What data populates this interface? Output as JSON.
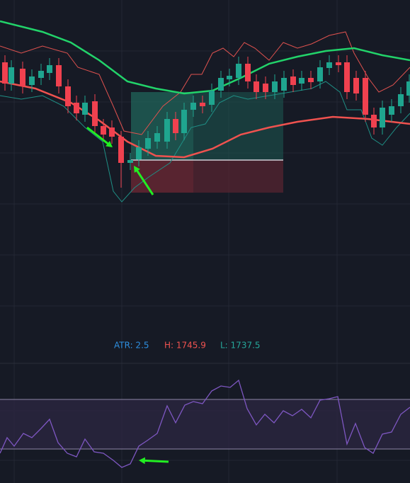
{
  "legend": {
    "atr": "ATR: 2.5",
    "high": "H: 1745.9",
    "low": "L: 1737.5"
  }
}
